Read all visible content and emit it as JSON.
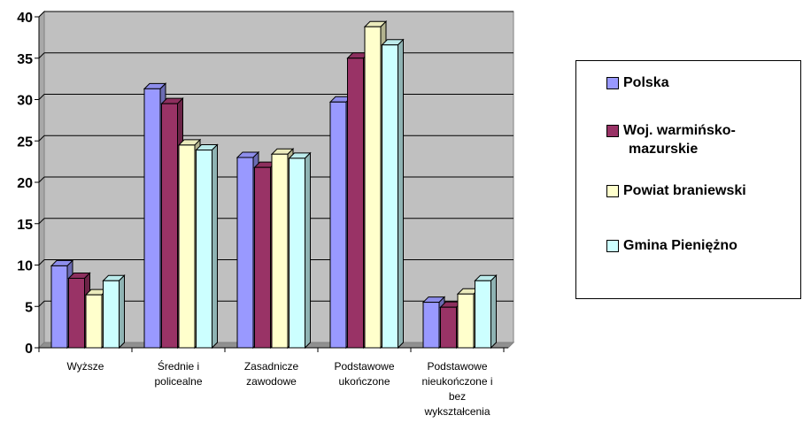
{
  "chart_data": {
    "type": "bar",
    "categories": [
      [
        "Wyższe"
      ],
      [
        "Średnie i",
        "policealne"
      ],
      [
        "Zasadnicze",
        "zawodowe"
      ],
      [
        "Podstawowe",
        "ukończone"
      ],
      [
        "Podstawowe",
        "nieukończone i",
        "bez",
        "wykształcenia"
      ]
    ],
    "series": [
      {
        "name": "Polska",
        "color": "#9999ff",
        "values": [
          9.9,
          31.3,
          23.0,
          29.7,
          5.5
        ]
      },
      {
        "name": "Woj. warmińsko-mazurskie",
        "color": "#993366",
        "values": [
          8.4,
          29.5,
          21.8,
          35.0,
          4.9
        ]
      },
      {
        "name": "Powiat braniewski",
        "color": "#ffffcc",
        "values": [
          6.4,
          24.5,
          23.4,
          38.8,
          6.5
        ]
      },
      {
        "name": "Gmina Pieniężno",
        "color": "#ccffff",
        "values": [
          8.1,
          23.9,
          22.9,
          36.6,
          8.1
        ]
      }
    ],
    "yticks": [
      0,
      5,
      10,
      15,
      20,
      25,
      30,
      35,
      40
    ],
    "ylim": [
      0,
      40
    ],
    "grid": true,
    "legend_position": "right",
    "title": "",
    "xlabel": "",
    "ylabel": ""
  },
  "legend": {
    "items": [
      {
        "lines": [
          "Polska"
        ]
      },
      {
        "lines": [
          "Woj. warmińsko-",
          "mazurskie"
        ]
      },
      {
        "lines": [
          "Powiat braniewski"
        ]
      },
      {
        "lines": [
          "Gmina Pieniężno"
        ]
      }
    ]
  }
}
